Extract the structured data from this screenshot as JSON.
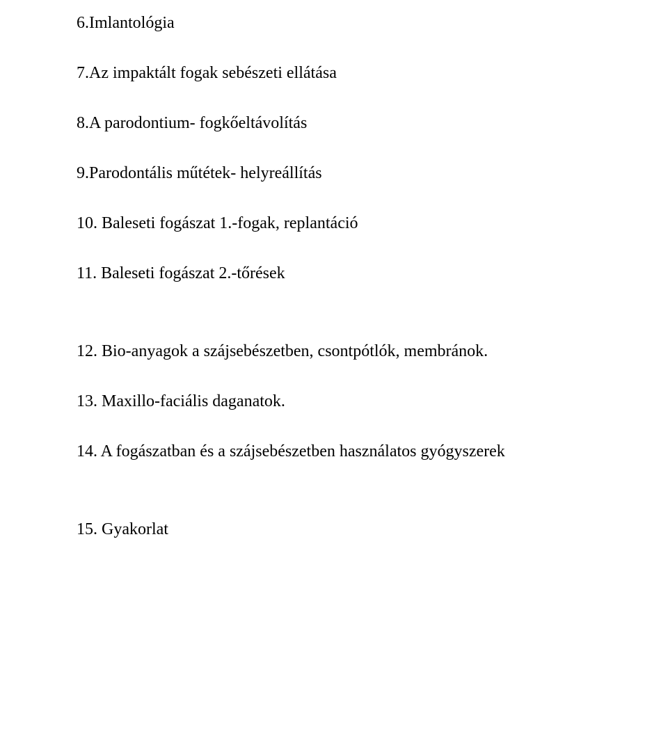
{
  "text": {
    "font_family": "Times New Roman",
    "font_size_pt": 18,
    "color": "#000000",
    "background_color": "#ffffff"
  },
  "items": [
    "6.Imlantológia",
    "7.Az impaktált fogak sebészeti ellátása",
    "8.A parodontium- fogkőeltávolítás",
    "9.Parodontális műtétek- helyreállítás",
    "10. Baleseti fogászat 1.-fogak, replantáció",
    "11. Baleseti fogászat 2.-tőrések",
    "12. Bio-anyagok a szájsebészetben, csontpótlók, membránok.",
    "13. Maxillo-faciális daganatok.",
    "14. A fogászatban és a szájsebészetben használatos gyógyszerek",
    "15. Gyakorlat"
  ]
}
